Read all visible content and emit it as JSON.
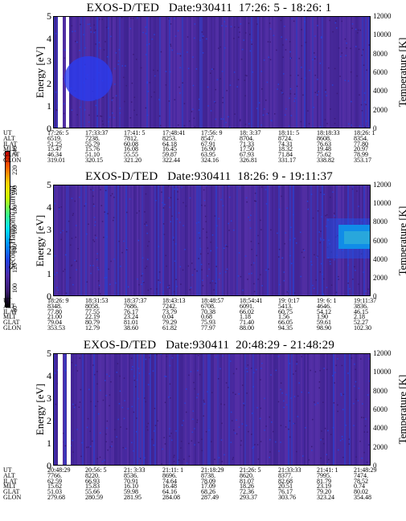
{
  "colorbar": {
    "label": "Second Harmonic Current",
    "ticks": [
      "80",
      "100",
      "120",
      "140",
      "160",
      "180",
      "200",
      "220",
      "240"
    ],
    "colors": [
      "#000000",
      "#3a1a6e",
      "#4b2aa8",
      "#2040e0",
      "#0090ff",
      "#00e0ff",
      "#40ff80",
      "#c8ff00",
      "#ffd000",
      "#ff6000",
      "#e00000"
    ]
  },
  "chart_data": [
    {
      "type": "heatmap",
      "title": "EXOS-D/TED   Date:930411  17:26: 5 - 18:26: 1",
      "ylabel": "Energy [eV]",
      "ylabel_right": "Temperature [K]",
      "y_ticks": [
        "0",
        "1",
        "2",
        "3",
        "4",
        "5"
      ],
      "y_ticks_right": [
        "0",
        "2000",
        "4000",
        "6000",
        "8000",
        "10000",
        "12000"
      ],
      "ylim": [
        0,
        5
      ],
      "ylim_right": [
        0,
        12000
      ],
      "orbit_rows": [
        {
          "name": "UT",
          "values": [
            "17:26: 5",
            "17:33:37",
            "17:41: 5",
            "17:48:41",
            "17:56: 9",
            "18: 3:37",
            "18:11: 5",
            "18:18:33",
            "18:26: 1"
          ]
        },
        {
          "name": "ALT",
          "values": [
            "6519.",
            "7238.",
            "7812.",
            "8253.",
            "8547.",
            "8704.",
            "8724.",
            "8608.",
            "8354."
          ]
        },
        {
          "name": "ILAT",
          "values": [
            "51.25",
            "55.79",
            "60.08",
            "64.18",
            "67.91",
            "71.33",
            "74.31",
            "76.63",
            "77.80"
          ]
        },
        {
          "name": "MLT",
          "values": [
            "15.47",
            "15.76",
            "16.08",
            "16.45",
            "16.90",
            "17.50",
            "18.32",
            "19.48",
            "20.97"
          ]
        },
        {
          "name": "GLAT",
          "values": [
            "46.34",
            "51.10",
            "55.55",
            "59.87",
            "63.95",
            "67.93",
            "71.84",
            "75.62",
            "78.99"
          ]
        },
        {
          "name": "GLON",
          "values": [
            "319.01",
            "320.15",
            "321.20",
            "322.44",
            "324.16",
            "326.81",
            "331.17",
            "338.82",
            "353.17"
          ]
        }
      ]
    },
    {
      "type": "heatmap",
      "title": "EXOS-D/TED   Date:930411  18:26: 9 - 19:11:37",
      "ylabel": "Energy [eV]",
      "ylabel_right": "Temperature [K]",
      "y_ticks": [
        "0",
        "1",
        "2",
        "3",
        "4",
        "5"
      ],
      "y_ticks_right": [
        "0",
        "2000",
        "4000",
        "6000",
        "8000",
        "10000",
        "12000"
      ],
      "ylim": [
        0,
        5
      ],
      "ylim_right": [
        0,
        12000
      ],
      "orbit_rows": [
        {
          "name": "UT",
          "values": [
            "18:26: 9",
            "18:31:53",
            "18:37:37",
            "18:43:13",
            "18:48:57",
            "18:54:41",
            "19: 0:17",
            "19: 6: 1",
            "19:11:37"
          ]
        },
        {
          "name": "ALT",
          "values": [
            "8348.",
            "8058.",
            "7686.",
            "7242.",
            "6708.",
            "6091.",
            "5413.",
            "4646.",
            "3836."
          ]
        },
        {
          "name": "ILAT",
          "values": [
            "77.80",
            "77.55",
            "76.17",
            "73.79",
            "70.38",
            "66.02",
            "60.75",
            "54.12",
            "46.15"
          ]
        },
        {
          "name": "MLT",
          "values": [
            "21.00",
            "22.19",
            "23.24",
            "0.04",
            "0.68",
            "1.18",
            "1.56",
            "1.90",
            "2.18"
          ]
        },
        {
          "name": "GLAT",
          "values": [
            "79.04",
            "80.79",
            "81.01",
            "79.29",
            "75.93",
            "71.40",
            "66.05",
            "59.61",
            "52.27"
          ]
        },
        {
          "name": "GLON",
          "values": [
            "353.53",
            "12.79",
            "38.60",
            "61.82",
            "77.97",
            "88.00",
            "94.35",
            "98.90",
            "102.30"
          ]
        }
      ]
    },
    {
      "type": "heatmap",
      "title": "EXOS-D/TED   Date:930411  20:48:29 - 21:48:29",
      "ylabel": "Energy [eV]",
      "ylabel_right": "Temperature [K]",
      "y_ticks": [
        "0",
        "1",
        "2",
        "3",
        "4",
        "5"
      ],
      "y_ticks_right": [
        "0",
        "2000",
        "4000",
        "6000",
        "8000",
        "10000",
        "12000"
      ],
      "ylim": [
        0,
        5
      ],
      "ylim_right": [
        0,
        12000
      ],
      "orbit_rows": [
        {
          "name": "UT",
          "values": [
            "20:48:29",
            "20:56: 5",
            "21: 3:33",
            "21:11: 1",
            "21:18:29",
            "21:26: 5",
            "21:33:33",
            "21:41: 1",
            "21:48:29"
          ]
        },
        {
          "name": "ALT",
          "values": [
            "7766.",
            "8220.",
            "8536.",
            "8696.",
            "8738.",
            "8620.",
            "8377.",
            "7995.",
            "7474."
          ]
        },
        {
          "name": "ILAT",
          "values": [
            "62.59",
            "66.93",
            "70.91",
            "74.64",
            "78.09",
            "81.07",
            "82.68",
            "81.79",
            "78.52"
          ]
        },
        {
          "name": "MLT",
          "values": [
            "15.62",
            "15.83",
            "16.10",
            "16.48",
            "17.09",
            "18.26",
            "20.51",
            "23.19",
            "0.74"
          ]
        },
        {
          "name": "GLAT",
          "values": [
            "51.03",
            "55.66",
            "59.98",
            "64.16",
            "68.26",
            "72.36",
            "76.17",
            "79.20",
            "80.02"
          ]
        },
        {
          "name": "GLON",
          "values": [
            "279.68",
            "280.59",
            "281.95",
            "284.08",
            "287.49",
            "293.37",
            "303.76",
            "323.24",
            "354.48"
          ]
        }
      ]
    }
  ]
}
